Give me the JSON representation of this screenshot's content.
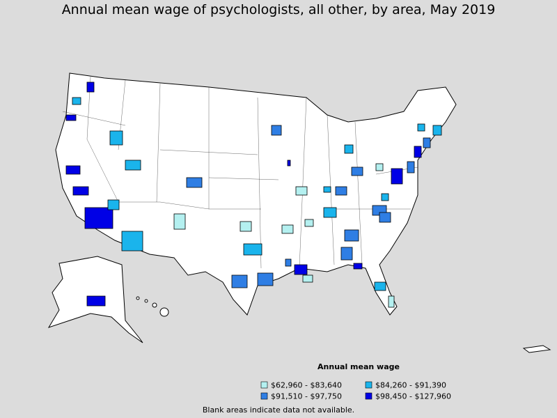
{
  "title": "Annual mean wage of psychologists, all other, by area, May 2019",
  "legend": {
    "title": "Annual mean wage",
    "items": [
      {
        "label": "$62,960 - $83,640",
        "color": "#b4f0f0"
      },
      {
        "label": "$84,260 - $91,390",
        "color": "#1ab4ec"
      },
      {
        "label": "$91,510 - $97,750",
        "color": "#2f7ee4"
      },
      {
        "label": "$98,450 - $127,960",
        "color": "#0000e6"
      }
    ]
  },
  "footnote": "Blank areas indicate data not available."
}
